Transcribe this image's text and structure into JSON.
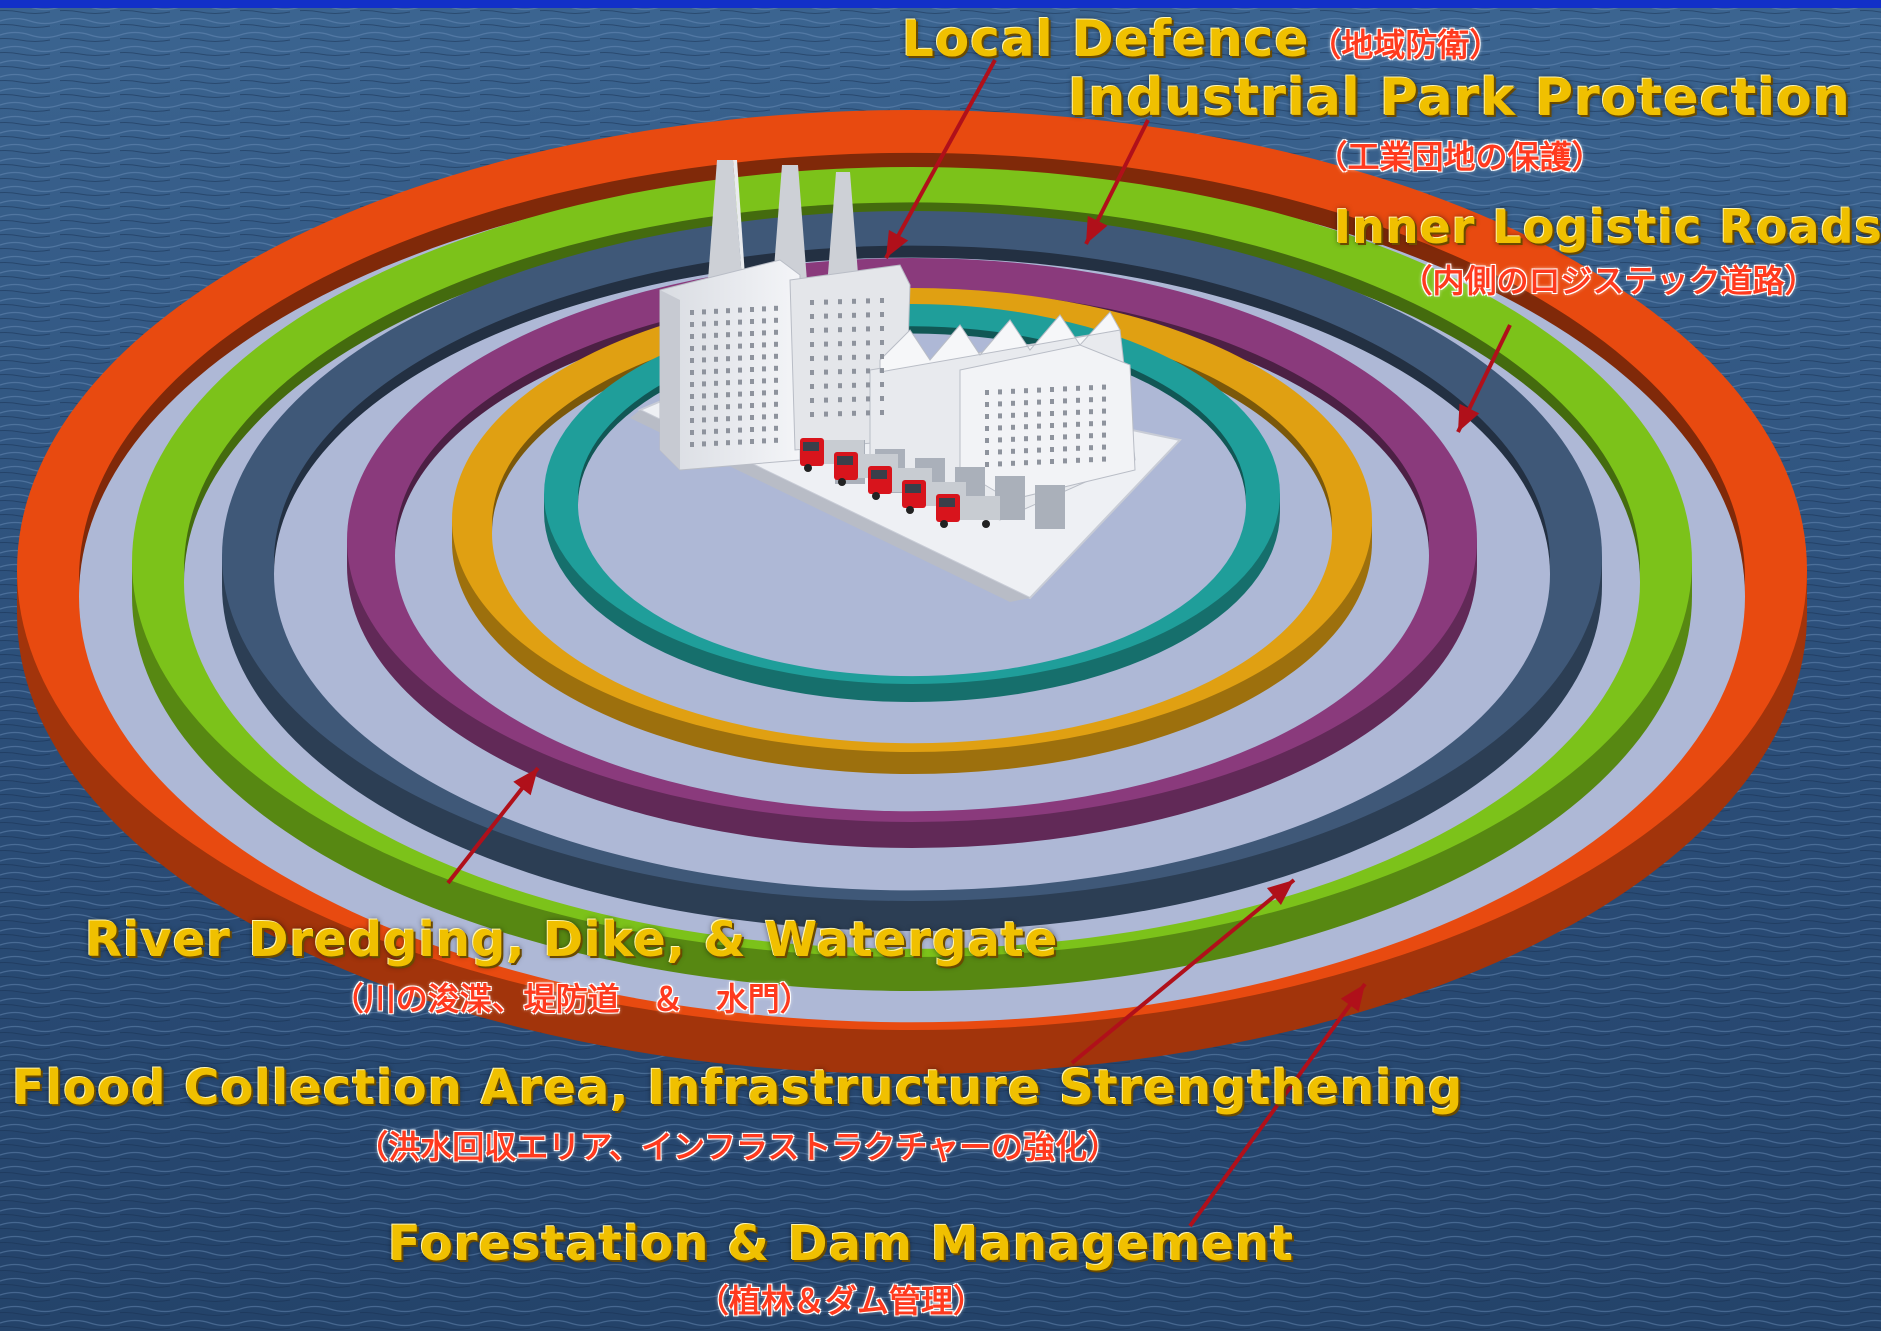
{
  "labels": {
    "local_defence": {
      "en": "Local Defence",
      "jp": "（地域防衛）"
    },
    "industrial_park": {
      "en": "Industrial Park Protection",
      "jp": "（工業団地の保護）"
    },
    "inner_logistic": {
      "en": "Inner Logistic Roads",
      "jp": "（内側のロジステック道路）"
    },
    "river_dredging": {
      "en": "River Dredging, Dike, & Watergate",
      "jp": "（川の浚渫、堤防道　＆　水門）"
    },
    "flood_collection": {
      "en": "Flood Collection Area, Infrastructure Strengthening",
      "jp": "（洪水回収エリア、インフラストラクチャーの強化）"
    },
    "forestation": {
      "en": "Forestation & Dam Management",
      "jp": "（植林＆ダム管理）"
    }
  },
  "rings": [
    {
      "name": "outer-orange-ring",
      "color": "#e84a10"
    },
    {
      "name": "green-ring",
      "color": "#7cc21a"
    },
    {
      "name": "slate-ring",
      "color": "#3f5878"
    },
    {
      "name": "purple-ring",
      "color": "#8a3a7c"
    },
    {
      "name": "amber-ring",
      "color": "#e0a012"
    },
    {
      "name": "teal-ring",
      "color": "#1f9e9a"
    }
  ],
  "colors": {
    "water": "#2c4f7a",
    "platform": "#aeb8d6",
    "arrow": "#b0101a",
    "label_en": "#f0c000",
    "label_jp": "#ff3a1e"
  },
  "icons": {
    "center": "factory-icon",
    "trucks": "truck-icon"
  }
}
